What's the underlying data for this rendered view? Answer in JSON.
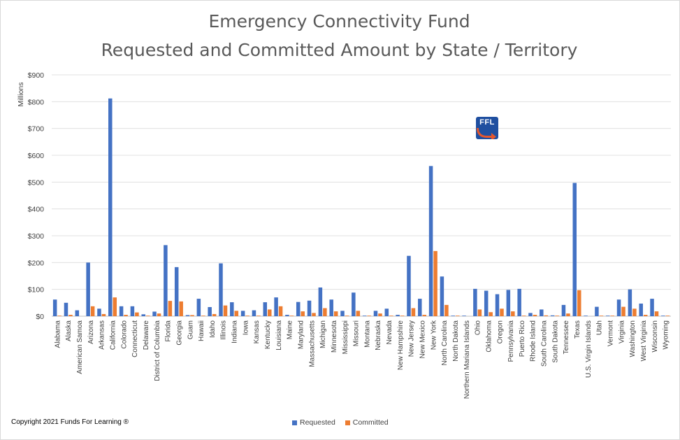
{
  "chart_data": {
    "type": "bar",
    "title_lines": [
      "Emergency Connectivity Fund",
      "Requested and Committed Amount by State / Territory"
    ],
    "ylabel": "Millions",
    "xlabel": "",
    "ylim": [
      0,
      900
    ],
    "yticks": [
      "$0",
      "$100",
      "$200",
      "$300",
      "$400",
      "$500",
      "$600",
      "$700",
      "$800",
      "$900"
    ],
    "grid": true,
    "legend_position": "bottom",
    "categories": [
      "Alabama",
      "Alaska",
      "American Samoa",
      "Arizona",
      "Arkansas",
      "California",
      "Colorado",
      "Connecticut",
      "Delaware",
      "District of Columbia",
      "Florida",
      "Georgia",
      "Guam",
      "Hawaii",
      "Idaho",
      "Illinois",
      "Indiana",
      "Iowa",
      "Kansas",
      "Kentucky",
      "Louisiana",
      "Maine",
      "Maryland",
      "Massachusetts",
      "Michigan",
      "Minnesota",
      "Mississippi",
      "Missouri",
      "Montana",
      "Nebraska",
      "Nevada",
      "New Hampshire",
      "New Jersey",
      "New Mexico",
      "New York",
      "North Carolina",
      "North Dakota",
      "Northern Mariana Islands",
      "Ohio",
      "Oklahoma",
      "Oregon",
      "Pennsylvania",
      "Puerto Rico",
      "Rhode Island",
      "South Carolina",
      "South Dakota",
      "Tennessee",
      "Texas",
      "U.S. Virgin Islands",
      "Utah",
      "Vermont",
      "Virginia",
      "Washington",
      "West Virginia",
      "Wisconsin",
      "Wyoming"
    ],
    "series": [
      {
        "name": "Requested",
        "color": "#4472c4",
        "values": [
          62,
          50,
          22,
          200,
          28,
          812,
          37,
          37,
          7,
          17,
          265,
          183,
          4,
          65,
          34,
          197,
          52,
          20,
          22,
          52,
          70,
          5,
          53,
          58,
          107,
          62,
          20,
          88,
          2,
          20,
          28,
          5,
          225,
          65,
          560,
          148,
          2,
          2,
          102,
          95,
          82,
          98,
          102,
          12,
          25,
          3,
          42,
          497,
          2,
          35,
          2,
          62,
          100,
          47,
          65,
          2
        ]
      },
      {
        "name": "Committed",
        "color": "#ed7d31",
        "values": [
          2,
          5,
          0,
          37,
          8,
          70,
          5,
          14,
          2,
          10,
          57,
          55,
          4,
          2,
          8,
          40,
          20,
          2,
          2,
          25,
          37,
          2,
          18,
          12,
          30,
          18,
          2,
          20,
          2,
          10,
          2,
          2,
          30,
          5,
          243,
          42,
          2,
          0,
          25,
          15,
          28,
          18,
          2,
          5,
          3,
          2,
          10,
          97,
          0,
          2,
          2,
          35,
          28,
          5,
          18,
          2
        ]
      }
    ]
  },
  "footer": {
    "copyright": "Copyright 2021 Funds For Learning ®"
  },
  "logo": {
    "text": "FFL",
    "icon": "ffl-logo-icon"
  }
}
